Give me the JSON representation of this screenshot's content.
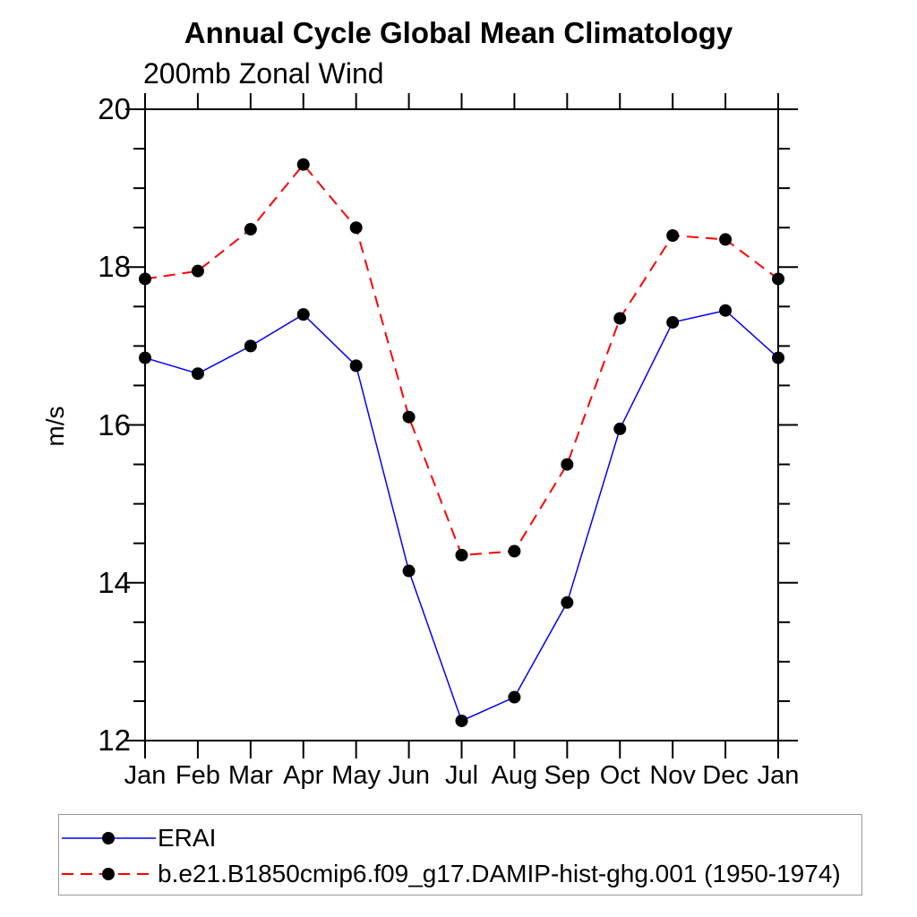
{
  "title": "Annual Cycle Global Mean Climatology",
  "subtitle": "200mb Zonal Wind",
  "chart_data": {
    "type": "line",
    "title": "Annual Cycle Global Mean Climatology",
    "subtitle": "200mb Zonal Wind",
    "ylabel": "m/s",
    "ylim": [
      12,
      20
    ],
    "y_major_ticks": [
      12,
      14,
      16,
      18,
      20
    ],
    "y_minor_step": 0.5,
    "grid": false,
    "legend_position": "bottom-left",
    "categories": [
      "Jan",
      "Feb",
      "Mar",
      "Apr",
      "May",
      "Jun",
      "Jul",
      "Aug",
      "Sep",
      "Oct",
      "Nov",
      "Dec",
      "Jan"
    ],
    "series": [
      {
        "name": "ERAI",
        "color": "#0000ff",
        "line_style": "solid",
        "marker": "filled-circle",
        "marker_color": "#000000",
        "values": [
          16.85,
          16.65,
          17.0,
          17.4,
          16.75,
          14.15,
          12.25,
          12.55,
          13.75,
          15.95,
          17.3,
          17.45,
          16.85
        ]
      },
      {
        "name": "b.e21.B1850cmip6.f09_g17.DAMIP-hist-ghg.001 (1950-1974)",
        "color": "#ff0000",
        "line_style": "dashed",
        "marker": "filled-circle",
        "marker_color": "#000000",
        "values": [
          17.85,
          17.95,
          18.48,
          19.3,
          18.5,
          16.1,
          14.35,
          14.4,
          15.5,
          17.35,
          18.4,
          18.35,
          17.85
        ]
      }
    ]
  },
  "colors": {
    "axis": "#000000",
    "background": "#ffffff",
    "legend_border": "#999999",
    "marker": "#000000"
  }
}
